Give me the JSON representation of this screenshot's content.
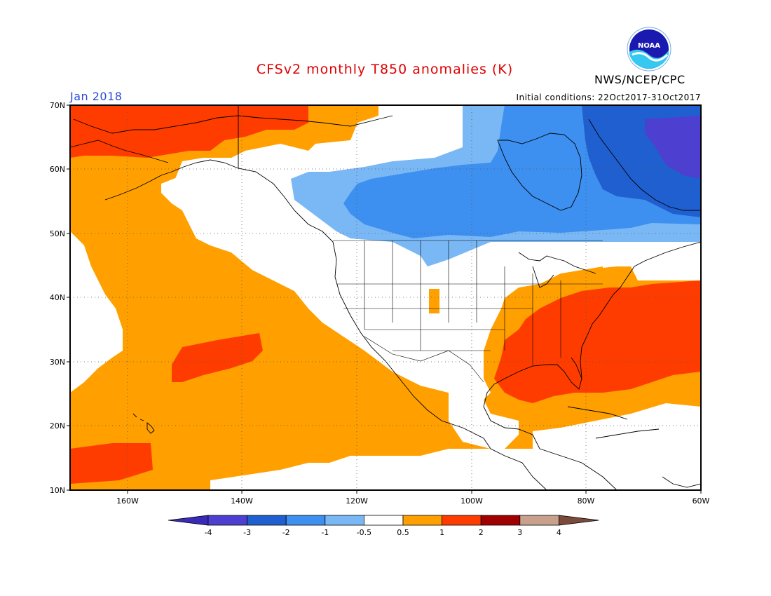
{
  "header": {
    "title": "CFSv2 monthly T850 anomalies (K)",
    "agency": "NWS/NCEP/CPC",
    "logo_text": "NOAA",
    "valid_month": "Jan 2018",
    "initial_conditions": "Initial conditions: 22Oct2017-31Oct2017"
  },
  "map": {
    "lon_range": [
      -170,
      -60
    ],
    "lat_range": [
      10,
      70
    ],
    "lat_labels": [
      "70N",
      "60N",
      "50N",
      "40N",
      "30N",
      "20N",
      "10N"
    ],
    "lon_labels": [
      "160W",
      "140W",
      "120W",
      "100W",
      "80W",
      "60W"
    ]
  },
  "colorbar": {
    "labels": [
      "-4",
      "-3",
      "-2",
      "-1",
      "-0.5",
      "0.5",
      "1",
      "2",
      "3",
      "4"
    ],
    "colors": [
      "#3a2ab8",
      "#4d3fd0",
      "#1f5fd0",
      "#3d8ff0",
      "#7ab8f5",
      "#ffffff",
      "#ffa000",
      "#ff3c00",
      "#a00000",
      "#c8a08c",
      "#7a4a3a"
    ]
  },
  "anomaly_classes": {
    "lt_-3": "#4d3fd0",
    "-3_-2": "#1f5fd0",
    "-2_-1": "#3d8ff0",
    "-1_-0.5": "#7ab8f5",
    "0.5_1": "#ffa000",
    "1_2": "#ff3c00"
  }
}
